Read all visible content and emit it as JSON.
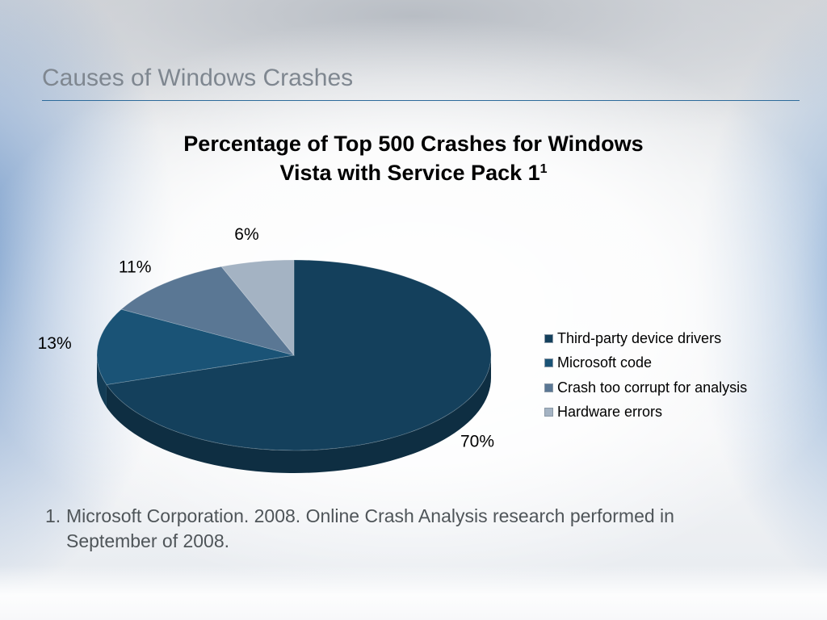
{
  "slide": {
    "title": "Causes of Windows Crashes",
    "footnote_number": "1.",
    "footnote_line1": "Microsoft Corporation. 2008. Online Crash Analysis research performed in",
    "footnote_line2": "September of 2008."
  },
  "chart_data": {
    "type": "pie",
    "title": "Percentage of Top 500 Crashes for Windows Vista with Service Pack 1",
    "title_line1": "Percentage of Top 500 Crashes for Windows",
    "title_line2": "Vista with Service Pack 1",
    "title_superscript": "1",
    "categories": [
      "Third-party device drivers",
      "Microsoft code",
      "Crash too corrupt for analysis",
      "Hardware errors"
    ],
    "values": [
      70,
      13,
      11,
      6
    ],
    "value_labels": [
      "70%",
      "13%",
      "11%",
      "6%"
    ],
    "colors": [
      "#14405c",
      "#1a5376",
      "#5a7794",
      "#a4b3c3"
    ],
    "legend_placement": "right"
  }
}
